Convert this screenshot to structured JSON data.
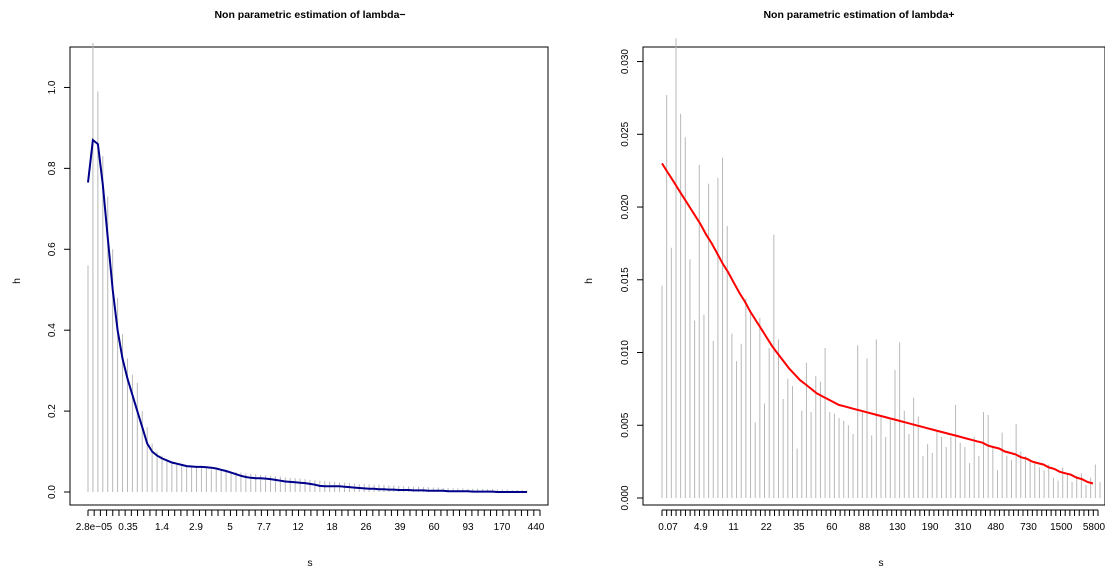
{
  "chart_data": [
    {
      "type": "bar",
      "title": "Non parametric estimation of lambda−",
      "xlabel": "s",
      "ylabel": "h",
      "ylim": [
        0,
        1.1
      ],
      "yticks": [
        "0.0",
        "0.2",
        "0.4",
        "0.6",
        "0.8",
        "1.0"
      ],
      "xtick_labels": [
        "2.8e−05",
        "0.35",
        "1.4",
        "2.9",
        "5",
        "7.7",
        "12",
        "18",
        "26",
        "39",
        "60",
        "93",
        "170",
        "440"
      ],
      "grid": false,
      "legend": "none",
      "bar_color": "#b8b8b8",
      "curve_color": "#00008b",
      "bars": [
        0.56,
        1.11,
        0.99,
        0.83,
        0.73,
        0.6,
        0.48,
        0.39,
        0.33,
        0.29,
        0.27,
        0.2,
        0.16,
        0.12,
        0.1,
        0.09,
        0.08,
        0.075,
        0.07,
        0.068,
        0.066,
        0.064,
        0.062,
        0.06,
        0.058,
        0.056,
        0.055,
        0.054,
        0.052,
        0.05,
        0.049,
        0.048,
        0.046,
        0.045,
        0.044,
        0.042,
        0.041,
        0.04,
        0.039,
        0.038,
        0.036,
        0.035,
        0.034,
        0.033,
        0.032,
        0.03,
        0.029,
        0.028,
        0.027,
        0.026,
        0.025,
        0.024,
        0.023,
        0.022,
        0.021,
        0.02,
        0.02,
        0.019,
        0.018,
        0.018,
        0.017,
        0.016,
        0.016,
        0.015,
        0.014,
        0.014,
        0.013,
        0.013,
        0.012,
        0.012,
        0.011,
        0.011,
        0.01,
        0.01,
        0.009,
        0.009,
        0.009,
        0.008,
        0.008,
        0.008,
        0.007,
        0.007,
        0.007,
        0.006,
        0.006,
        0.006,
        0.005,
        0.005,
        0.005,
        0.004
      ],
      "curve": [
        0.765,
        0.87,
        0.86,
        0.76,
        0.63,
        0.5,
        0.4,
        0.33,
        0.28,
        0.24,
        0.2,
        0.16,
        0.12,
        0.1,
        0.09,
        0.083,
        0.078,
        0.073,
        0.07,
        0.067,
        0.064,
        0.063,
        0.062,
        0.062,
        0.061,
        0.06,
        0.058,
        0.055,
        0.052,
        0.048,
        0.044,
        0.04,
        0.037,
        0.035,
        0.034,
        0.034,
        0.033,
        0.032,
        0.03,
        0.028,
        0.026,
        0.025,
        0.024,
        0.023,
        0.022,
        0.02,
        0.018,
        0.015,
        0.014,
        0.014,
        0.014,
        0.014,
        0.013,
        0.012,
        0.011,
        0.01,
        0.009,
        0.008,
        0.008,
        0.007,
        0.007,
        0.006,
        0.006,
        0.005,
        0.005,
        0.005,
        0.004,
        0.004,
        0.004,
        0.003,
        0.003,
        0.003,
        0.003,
        0.002,
        0.002,
        0.002,
        0.002,
        0.002,
        0.001,
        0.001,
        0.001,
        0.001,
        0.001,
        0.0,
        0.0,
        0.0,
        0.0,
        0.0,
        0.0,
        0.0
      ]
    },
    {
      "type": "bar",
      "title": "Non parametric estimation of lambda+",
      "xlabel": "s",
      "ylabel": "h",
      "ylim": [
        0,
        0.031
      ],
      "yticks": [
        "0.000",
        "0.005",
        "0.010",
        "0.015",
        "0.020",
        "0.025",
        "0.030"
      ],
      "xtick_labels": [
        "0.07",
        "4.9",
        "11",
        "22",
        "35",
        "60",
        "88",
        "130",
        "190",
        "310",
        "480",
        "730",
        "1500",
        "5800"
      ],
      "grid": false,
      "legend": "none",
      "bar_color": "#b8b8b8",
      "curve_color": "#ff0000",
      "bars": [
        0.0146,
        0.0277,
        0.0172,
        0.0316,
        0.0264,
        0.0248,
        0.0164,
        0.0122,
        0.0229,
        0.0126,
        0.0216,
        0.0108,
        0.022,
        0.0234,
        0.0187,
        0.0113,
        0.0094,
        0.0106,
        0.0137,
        0.0128,
        0.0052,
        0.0124,
        0.0065,
        0.0103,
        0.0181,
        0.0109,
        0.0068,
        0.0082,
        0.0077,
        0.0034,
        0.006,
        0.0093,
        0.0059,
        0.0084,
        0.008,
        0.0103,
        0.0059,
        0.0058,
        0.0055,
        0.0053,
        0.005,
        0.0044,
        0.0105,
        0.0059,
        0.0096,
        0.0043,
        0.0109,
        0.0056,
        0.0042,
        0.0054,
        0.0088,
        0.0107,
        0.006,
        0.0044,
        0.0069,
        0.0056,
        0.0029,
        0.0037,
        0.0031,
        0.0046,
        0.0042,
        0.0035,
        0.0042,
        0.0064,
        0.0038,
        0.0035,
        0.0024,
        0.0042,
        0.0029,
        0.0059,
        0.0057,
        0.0035,
        0.0019,
        0.0045,
        0.0029,
        0.0026,
        0.0051,
        0.0032,
        0.0029,
        0.0026,
        0.0024,
        0.0021,
        0.0019,
        0.0023,
        0.0014,
        0.0012,
        0.0021,
        0.0016,
        0.0011,
        0.0015,
        0.0017,
        0.0009,
        0.0014,
        0.0023,
        0.0011
      ],
      "curve": [
        0.023,
        0.0224,
        0.0218,
        0.0212,
        0.0206,
        0.02,
        0.0194,
        0.0188,
        0.0181,
        0.0175,
        0.0168,
        0.0161,
        0.0155,
        0.0148,
        0.0141,
        0.0135,
        0.0128,
        0.0122,
        0.0116,
        0.011,
        0.0104,
        0.0099,
        0.0094,
        0.0089,
        0.0085,
        0.0081,
        0.0078,
        0.0075,
        0.0072,
        0.007,
        0.0068,
        0.0066,
        0.0064,
        0.0063,
        0.0062,
        0.0061,
        0.006,
        0.0059,
        0.0058,
        0.0057,
        0.0056,
        0.0055,
        0.0054,
        0.0053,
        0.0052,
        0.0051,
        0.005,
        0.0049,
        0.0048,
        0.0047,
        0.0046,
        0.0045,
        0.0044,
        0.0043,
        0.0042,
        0.0041,
        0.004,
        0.0039,
        0.0038,
        0.0036,
        0.0035,
        0.0034,
        0.0032,
        0.0031,
        0.003,
        0.0028,
        0.0027,
        0.0025,
        0.0024,
        0.0023,
        0.0021,
        0.002,
        0.0018,
        0.0017,
        0.0016,
        0.0014,
        0.0013,
        0.0011,
        0.001
      ]
    }
  ]
}
